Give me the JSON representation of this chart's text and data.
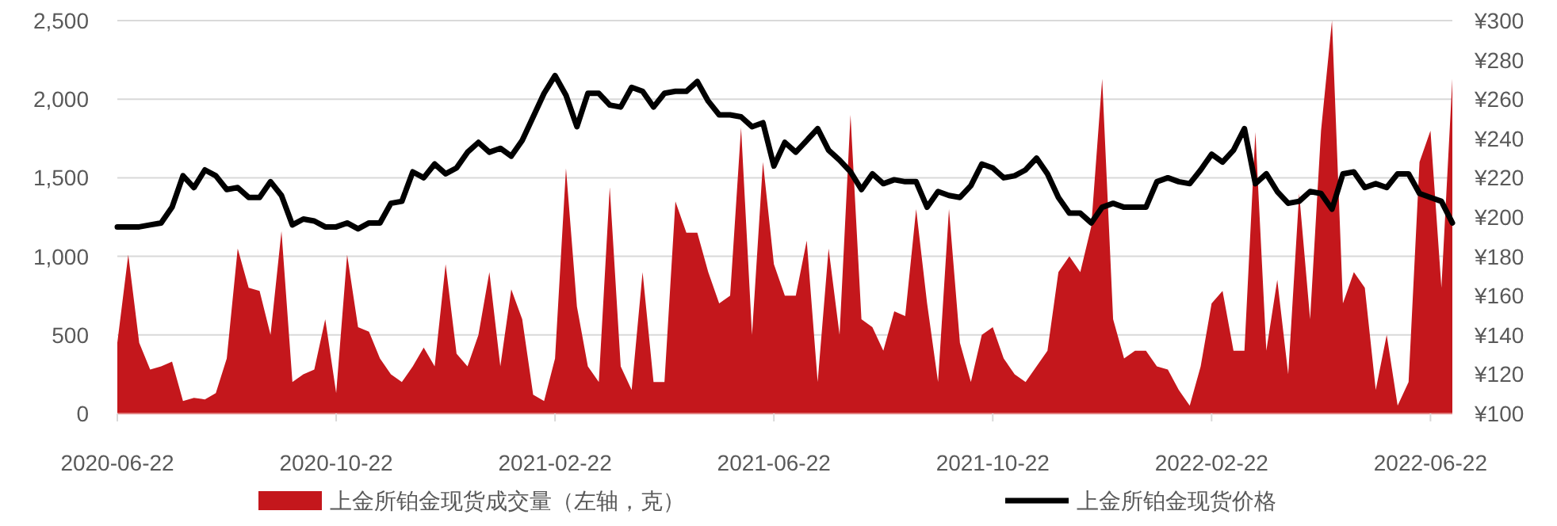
{
  "chart_data": {
    "type": "area",
    "categories": [
      "2020-06-22",
      null,
      null,
      null,
      null,
      null,
      null,
      null,
      null,
      null,
      null,
      null,
      null,
      null,
      null,
      null,
      null,
      null,
      null,
      null,
      "2020-10-22",
      null,
      null,
      null,
      null,
      null,
      null,
      null,
      null,
      null,
      null,
      null,
      null,
      null,
      null,
      null,
      null,
      null,
      null,
      null,
      "2021-02-22",
      null,
      null,
      null,
      null,
      null,
      null,
      null,
      null,
      null,
      null,
      null,
      null,
      null,
      null,
      null,
      null,
      null,
      null,
      null,
      "2021-06-22",
      null,
      null,
      null,
      null,
      null,
      null,
      null,
      null,
      null,
      null,
      null,
      null,
      null,
      null,
      null,
      null,
      null,
      null,
      null,
      "2021-10-22",
      null,
      null,
      null,
      null,
      null,
      null,
      null,
      null,
      null,
      null,
      null,
      null,
      null,
      null,
      null,
      null,
      null,
      null,
      null,
      "2022-02-22",
      null,
      null,
      null,
      null,
      null,
      null,
      null,
      null,
      null,
      null,
      null,
      null,
      null,
      null,
      null,
      null,
      null,
      null,
      null,
      "2022-06-22",
      null,
      null
    ],
    "series": [
      {
        "name": "上金所铂金现货成交量（左轴，克）",
        "color": "#c4171c",
        "values": [
          450,
          1010,
          450,
          280,
          300,
          330,
          80,
          100,
          90,
          130,
          350,
          1050,
          800,
          780,
          500,
          1160,
          200,
          250,
          280,
          600,
          130,
          1010,
          550,
          520,
          350,
          250,
          200,
          300,
          420,
          300,
          950,
          380,
          300,
          500,
          900,
          300,
          790,
          600,
          120,
          80,
          350,
          1560,
          680,
          300,
          200,
          1440,
          300,
          150,
          900,
          200,
          200,
          1350,
          1150,
          1150,
          900,
          700,
          750,
          1820,
          500,
          1600,
          950,
          750,
          750,
          1100,
          200,
          1050,
          500,
          1900,
          600,
          550,
          400,
          650,
          620,
          1300,
          700,
          200,
          1300,
          450,
          200,
          500,
          550,
          350,
          250,
          200,
          300,
          400,
          900,
          1000,
          900,
          1190,
          2130,
          600,
          350,
          400,
          400,
          300,
          280,
          150,
          50,
          300,
          700,
          780,
          400,
          400,
          1790,
          400,
          850,
          250,
          1400,
          600,
          1800,
          2500,
          700,
          900,
          800,
          150,
          500,
          50,
          200,
          1600,
          1800,
          800,
          2130
        ]
      },
      {
        "name": "上金所铂金现货价格",
        "type": "line",
        "axis": "y2",
        "color": "#000000",
        "values": [
          195,
          195,
          195,
          196,
          197,
          205,
          221,
          215,
          224,
          221,
          214,
          215,
          210,
          210,
          218,
          211,
          196,
          199,
          198,
          195,
          195,
          197,
          194,
          197,
          197,
          207,
          208,
          223,
          220,
          227,
          222,
          225,
          233,
          238,
          233,
          235,
          231,
          239,
          251,
          263,
          272,
          262,
          246,
          263,
          263,
          257,
          256,
          266,
          264,
          256,
          263,
          264,
          264,
          269,
          259,
          252,
          252,
          251,
          246,
          248,
          226,
          238,
          233,
          239,
          245,
          234,
          229,
          223,
          214,
          222,
          217,
          219,
          218,
          218,
          205,
          213,
          211,
          210,
          216,
          227,
          225,
          220,
          221,
          224,
          230,
          222,
          210,
          202,
          202,
          197,
          205,
          207,
          205,
          205,
          205,
          218,
          220,
          218,
          217,
          224,
          232,
          228,
          234,
          245,
          217,
          222,
          213,
          207,
          208,
          213,
          212,
          204,
          222,
          223,
          215,
          217,
          215,
          222,
          222,
          212,
          210,
          208,
          197
        ]
      }
    ],
    "ylim": [
      0,
      2500
    ],
    "yticks": [
      0,
      500,
      {
        "value": 1000,
        "label": "1,000"
      },
      {
        "value": 1500,
        "label": "1,500"
      },
      {
        "value": 2000,
        "label": "2,000"
      },
      {
        "value": 2500,
        "label": "2,500"
      }
    ],
    "y2lim": [
      100,
      300
    ],
    "y2ticks": [
      {
        "value": 100,
        "label": "¥100"
      },
      {
        "value": 120,
        "label": "¥120"
      },
      {
        "value": 140,
        "label": "¥140"
      },
      {
        "value": 160,
        "label": "¥160"
      },
      {
        "value": 180,
        "label": "¥180"
      },
      {
        "value": 200,
        "label": "¥200"
      },
      {
        "value": 220,
        "label": "¥220"
      },
      {
        "value": 240,
        "label": "¥240"
      },
      {
        "value": 260,
        "label": "¥260"
      },
      {
        "value": 280,
        "label": "¥280"
      },
      {
        "value": 300,
        "label": "¥300"
      }
    ],
    "grid": "y",
    "legend": "bottom"
  }
}
